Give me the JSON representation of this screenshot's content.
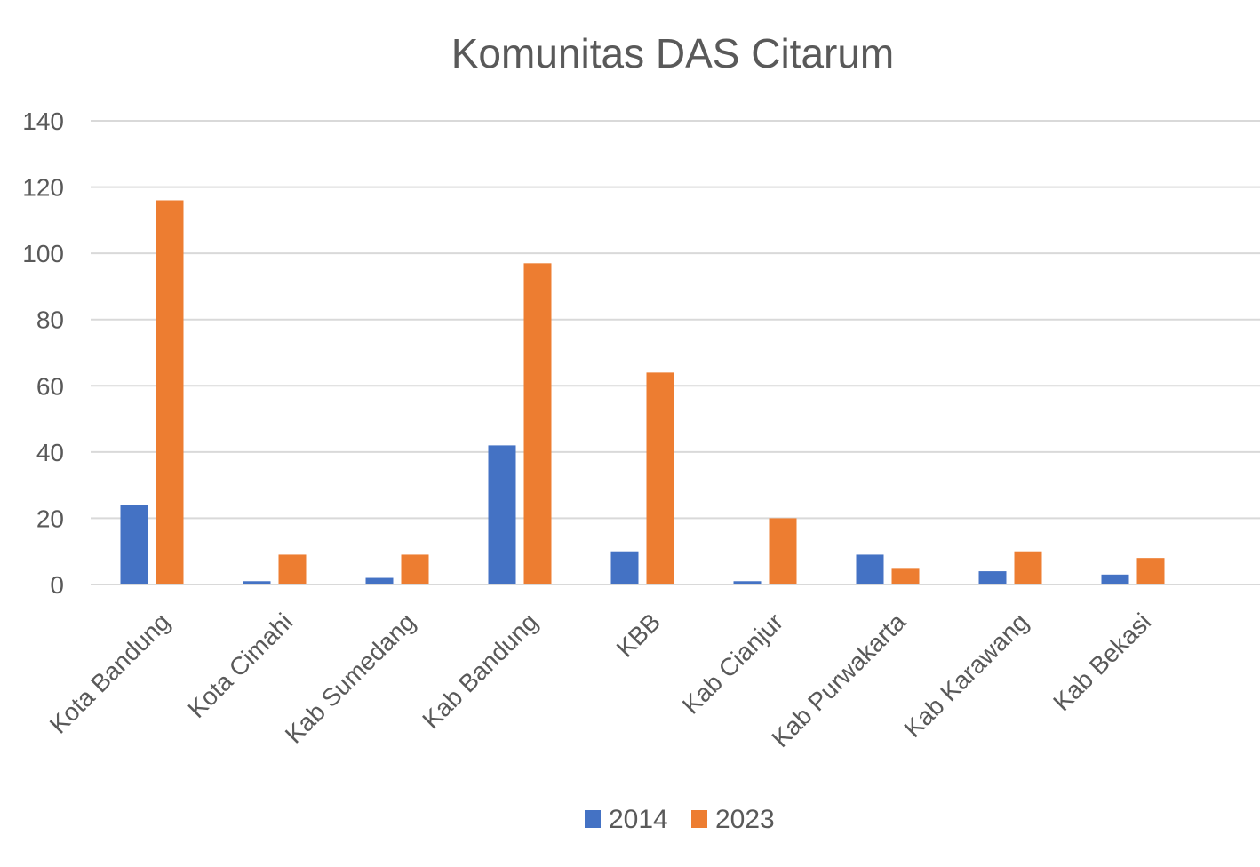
{
  "chart_data": {
    "type": "bar",
    "title": "Komunitas DAS Citarum",
    "xlabel": "",
    "ylabel": "",
    "ylim": [
      0,
      140
    ],
    "yticks": [
      "0",
      "20",
      "40",
      "60",
      "80",
      "100",
      "120",
      "140"
    ],
    "grid": true,
    "legend_position": "bottom",
    "categories": [
      "Kota Bandung",
      "Kota Cimahi",
      "Kab Sumedang",
      "Kab Bandung",
      "KBB",
      "Kab Cianjur",
      "Kab Purwakarta",
      "Kab Karawang",
      "Kab Bekasi"
    ],
    "series": [
      {
        "name": "2014",
        "color": "#4472c4",
        "values": [
          24,
          1,
          2,
          42,
          10,
          1,
          9,
          4,
          3
        ]
      },
      {
        "name": "2023",
        "color": "#ed7d31",
        "values": [
          116,
          9,
          9,
          97,
          64,
          20,
          5,
          10,
          8
        ]
      }
    ]
  }
}
